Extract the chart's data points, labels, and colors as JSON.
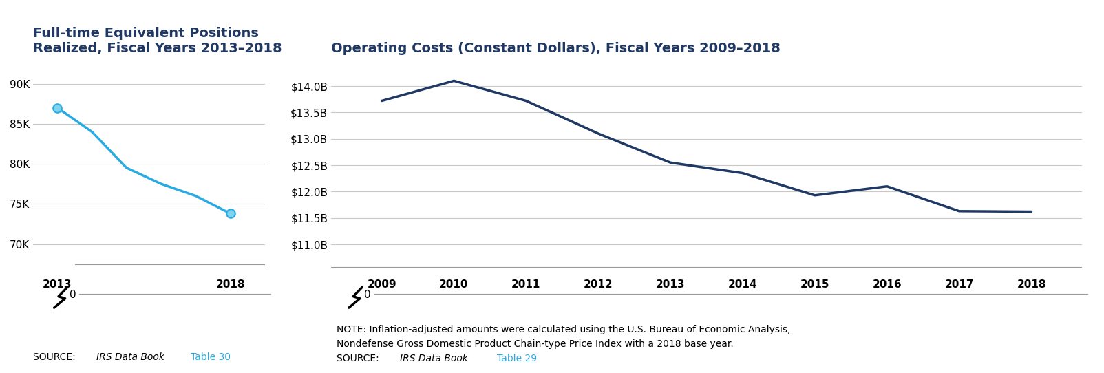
{
  "chart1": {
    "title_line1": "Full-time Equivalent Positions",
    "title_line2": "Realized, Fiscal Years 2013–2018",
    "x": [
      2013,
      2014,
      2015,
      2016,
      2017,
      2018
    ],
    "y": [
      87000,
      84000,
      79500,
      77500,
      76000,
      73800
    ],
    "yticks": [
      70000,
      75000,
      80000,
      85000,
      90000
    ],
    "ylabels": [
      "70K",
      "75K",
      "80K",
      "85K",
      "90K"
    ],
    "ylim_top": 93000,
    "ylim_bottom": 66000,
    "xticks": [
      2013,
      2018
    ],
    "line_color": "#29ABE2",
    "marker_color": "#29ABE2",
    "source_link_color": "#29ABE2"
  },
  "chart2": {
    "title": "Operating Costs (Constant Dollars), Fiscal Years 2009–2018",
    "x": [
      2009,
      2010,
      2011,
      2012,
      2013,
      2014,
      2015,
      2016,
      2017,
      2018
    ],
    "y": [
      13.72,
      14.1,
      13.72,
      13.1,
      12.55,
      12.35,
      11.93,
      12.1,
      11.63,
      11.62
    ],
    "yticks": [
      11.0,
      11.5,
      12.0,
      12.5,
      13.0,
      13.5,
      14.0
    ],
    "ylabels": [
      "$11.0B",
      "$11.5B",
      "$12.0B",
      "$12.5B",
      "$13.0B",
      "$13.5B",
      "$14.0B"
    ],
    "ylim_top": 14.5,
    "ylim_bottom": 10.4,
    "xticks": [
      2009,
      2010,
      2011,
      2012,
      2013,
      2014,
      2015,
      2016,
      2017,
      2018
    ],
    "line_color": "#1F3864",
    "note_line1": "NOTE: Inflation-adjusted amounts were calculated using the U.S. Bureau of Economic Analysis,",
    "note_line2": "Nondefense Gross Domestic Product Chain-type Price Index with a 2018 base year.",
    "source_link_color": "#29ABE2"
  },
  "title_color": "#1F3864",
  "grid_color": "#C8C8C8",
  "bg_color": "#FFFFFF",
  "title_fontsize": 14,
  "tick_fontsize": 11,
  "source_fontsize": 10
}
